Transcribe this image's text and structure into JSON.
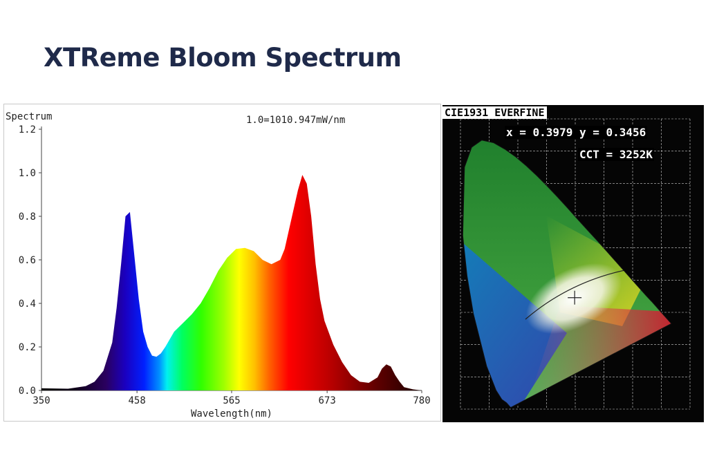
{
  "slide": {
    "title": "XTReme Bloom Spectrum"
  },
  "chart_data": [
    {
      "type": "area",
      "title": "Spectrum",
      "annotation": "1.0=1010.947mW/nm",
      "xlabel": "Wavelength(nm)",
      "ylabel": "",
      "xlim": [
        350,
        780
      ],
      "ylim": [
        0,
        1.2
      ],
      "x_ticks": [
        "350",
        "458",
        "565",
        "673",
        "780"
      ],
      "y_ticks": [
        "0.0",
        "0.2",
        "0.4",
        "0.6",
        "0.8",
        "1.0",
        "1.2"
      ],
      "grid": false,
      "series": [
        {
          "x": [
            350,
            380,
            400,
            410,
            420,
            430,
            435,
            440,
            445,
            450,
            455,
            460,
            465,
            470,
            475,
            480,
            485,
            490,
            500,
            510,
            520,
            530,
            540,
            550,
            560,
            570,
            580,
            590,
            600,
            610,
            620,
            625,
            630,
            640,
            645,
            650,
            655,
            660,
            665,
            670,
            680,
            690,
            700,
            710,
            720,
            730,
            735,
            740,
            745,
            750,
            755,
            760,
            770,
            780
          ],
          "values": [
            0.01,
            0.008,
            0.02,
            0.04,
            0.09,
            0.22,
            0.38,
            0.58,
            0.8,
            0.82,
            0.62,
            0.42,
            0.27,
            0.2,
            0.16,
            0.155,
            0.17,
            0.2,
            0.27,
            0.31,
            0.35,
            0.4,
            0.47,
            0.55,
            0.61,
            0.65,
            0.655,
            0.64,
            0.6,
            0.58,
            0.6,
            0.65,
            0.74,
            0.92,
            0.99,
            0.95,
            0.8,
            0.58,
            0.42,
            0.32,
            0.21,
            0.13,
            0.07,
            0.04,
            0.035,
            0.06,
            0.1,
            0.12,
            0.11,
            0.07,
            0.04,
            0.015,
            0.005,
            0.0
          ]
        }
      ]
    },
    {
      "type": "scatter",
      "title": "CIE1931 EVERFINE",
      "xy_text": "x = 0.3979 y = 0.3456",
      "cct_text": "CCT = 3252K",
      "xlim": [
        0,
        0.8
      ],
      "ylim": [
        0,
        0.9
      ],
      "point": {
        "x": 0.3979,
        "y": 0.3456
      }
    }
  ]
}
